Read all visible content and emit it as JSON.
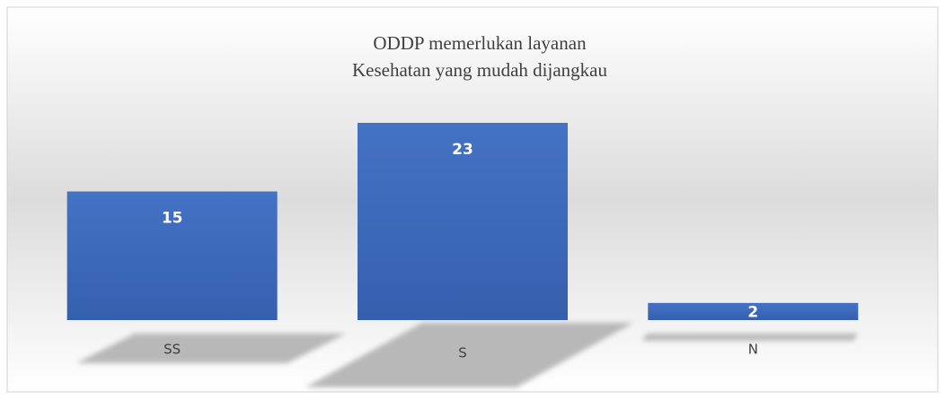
{
  "chart_data": {
    "type": "bar",
    "title": [
      "ODDP memerlukan layanan",
      "Kesehatan yang mudah dijangkau"
    ],
    "categories": [
      "SS",
      "S",
      "N"
    ],
    "values": [
      15,
      23,
      2
    ],
    "color": "#4472c4"
  }
}
